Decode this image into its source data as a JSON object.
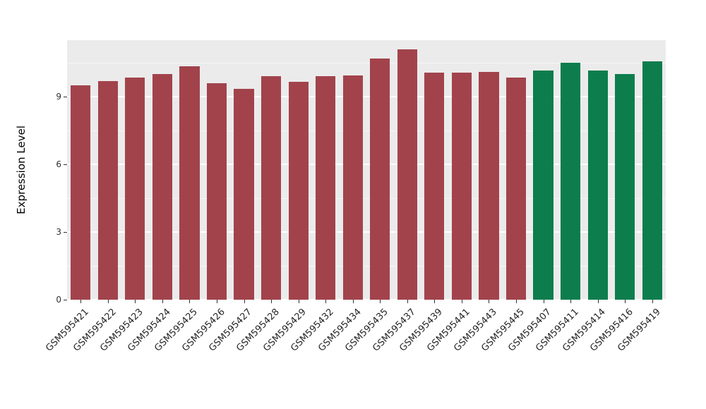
{
  "figure": {
    "background": "#ffffff",
    "panel_background": "#ebebeb",
    "grid_color": "#ffffff",
    "tick_color": "#333333",
    "text_color": "#262626"
  },
  "chart_data": {
    "type": "bar",
    "title": "",
    "xlabel": "",
    "ylabel": "Expression Level",
    "ylim": [
      0,
      11.5
    ],
    "yticks": [
      0,
      3,
      6,
      9
    ],
    "minor_yticks": [
      1.5,
      4.5,
      7.5,
      10.5
    ],
    "grid": true,
    "legend": "none",
    "bar_width_fraction": 0.73,
    "categories": [
      "GSM595421",
      "GSM595422",
      "GSM595423",
      "GSM595424",
      "GSM595425",
      "GSM595426",
      "GSM595427",
      "GSM595428",
      "GSM595429",
      "GSM595432",
      "GSM595434",
      "GSM595435",
      "GSM595437",
      "GSM595439",
      "GSM595441",
      "GSM595443",
      "GSM595445",
      "GSM595407",
      "GSM595411",
      "GSM595414",
      "GSM595416",
      "GSM595419"
    ],
    "values": [
      9.5,
      9.7,
      9.85,
      10.0,
      10.35,
      9.6,
      9.35,
      9.9,
      9.65,
      9.9,
      9.95,
      10.7,
      11.1,
      10.05,
      10.05,
      10.1,
      9.85,
      10.15,
      10.5,
      10.15,
      10.0,
      10.55
    ],
    "bar_colors": [
      "#a2434c",
      "#a2434c",
      "#a2434c",
      "#a2434c",
      "#a2434c",
      "#a2434c",
      "#a2434c",
      "#a2434c",
      "#a2434c",
      "#a2434c",
      "#a2434c",
      "#a2434c",
      "#a2434c",
      "#a2434c",
      "#a2434c",
      "#a2434c",
      "#a2434c",
      "#0d7d4d",
      "#0d7d4d",
      "#0d7d4d",
      "#0d7d4d",
      "#0d7d4d"
    ],
    "group_palette": {
      "red_group": "#a2434c",
      "green_group": "#0d7d4d"
    }
  }
}
